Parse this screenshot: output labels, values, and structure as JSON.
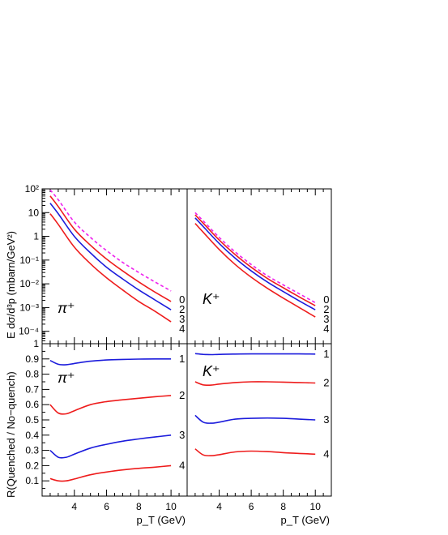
{
  "panels": {
    "top_left_label": "π⁺",
    "top_right_label": "K⁺",
    "bottom_left_label": "π⁺",
    "bottom_right_label": "K⁺"
  },
  "axes": {
    "top_ylabel": "E dσ/d³p  (mbarn/GeV²)",
    "bottom_ylabel": "R(Quenched / No−quench)",
    "xlabel": "p_T (GeV)",
    "x_ticks": [
      "4",
      "6",
      "8",
      "10"
    ],
    "top_y_ticks": [
      "10²",
      "10",
      "1",
      "10⁻¹",
      "10⁻²",
      "10⁻³",
      "10⁻⁴"
    ],
    "bottom_y_ticks": [
      "1",
      "0.9",
      "0.8",
      "0.7",
      "0.6",
      "0.5",
      "0.4",
      "0.3",
      "0.2",
      "0.1"
    ]
  },
  "colors": {
    "red": "#ee1c1c",
    "blue": "#1c1cdc",
    "magenta": "#ee22ee"
  },
  "chart_data": [
    {
      "type": "line",
      "panel": "top-left",
      "yscale": "log",
      "xlim": [
        2,
        11
      ],
      "ylim": [
        3e-05,
        100
      ],
      "x": [
        2.5,
        3,
        4,
        5,
        6,
        7,
        8,
        9,
        10
      ],
      "series": [
        {
          "name": "0",
          "style": "dashed",
          "color": "magenta",
          "values": [
            90,
            35,
            4,
            0.9,
            0.25,
            0.08,
            0.03,
            0.012,
            0.005
          ]
        },
        {
          "name": "2",
          "color": "red",
          "values": [
            50,
            18,
            2,
            0.42,
            0.11,
            0.035,
            0.012,
            0.0045,
            0.0018
          ]
        },
        {
          "name": "3",
          "color": "blue",
          "values": [
            25,
            9,
            1,
            0.2,
            0.05,
            0.016,
            0.0055,
            0.0021,
            0.0008
          ]
        },
        {
          "name": "4",
          "color": "red",
          "values": [
            9,
            3.2,
            0.35,
            0.07,
            0.018,
            0.0055,
            0.0018,
            0.0007,
            0.00025
          ]
        }
      ],
      "end_labels": [
        "0",
        "2",
        "3",
        "4"
      ]
    },
    {
      "type": "line",
      "panel": "top-right",
      "yscale": "log",
      "xlim": [
        2,
        11
      ],
      "ylim": [
        3e-05,
        100
      ],
      "x": [
        2.5,
        3,
        4,
        5,
        6,
        7,
        8,
        9,
        10
      ],
      "series": [
        {
          "name": "0",
          "style": "dashed",
          "color": "magenta",
          "values": [
            10,
            4.5,
            0.9,
            0.22,
            0.065,
            0.022,
            0.009,
            0.0038,
            0.0016
          ]
        },
        {
          "name": "2",
          "color": "red",
          "values": [
            8,
            3.6,
            0.7,
            0.17,
            0.05,
            0.017,
            0.0068,
            0.0028,
            0.0012
          ]
        },
        {
          "name": "3",
          "color": "blue",
          "values": [
            6,
            2.6,
            0.5,
            0.12,
            0.035,
            0.012,
            0.0047,
            0.0019,
            0.0008
          ]
        },
        {
          "name": "4",
          "color": "red",
          "values": [
            3.5,
            1.5,
            0.28,
            0.065,
            0.019,
            0.0065,
            0.0025,
            0.001,
            0.0004
          ]
        }
      ],
      "end_labels": [
        "0",
        "2",
        "3",
        "4"
      ]
    },
    {
      "type": "line",
      "panel": "bottom-left",
      "xlim": [
        2,
        11
      ],
      "ylim": [
        0,
        1
      ],
      "x": [
        2.5,
        3,
        3.5,
        4,
        5,
        6,
        7,
        8,
        9,
        10
      ],
      "series": [
        {
          "name": "1",
          "color": "blue",
          "values": [
            0.89,
            0.865,
            0.862,
            0.87,
            0.885,
            0.893,
            0.897,
            0.899,
            0.9,
            0.9
          ]
        },
        {
          "name": "2",
          "color": "red",
          "values": [
            0.6,
            0.545,
            0.54,
            0.56,
            0.6,
            0.62,
            0.632,
            0.642,
            0.652,
            0.66
          ]
        },
        {
          "name": "3",
          "color": "blue",
          "values": [
            0.3,
            0.255,
            0.255,
            0.275,
            0.315,
            0.34,
            0.36,
            0.375,
            0.388,
            0.4
          ]
        },
        {
          "name": "4",
          "color": "red",
          "values": [
            0.115,
            0.1,
            0.1,
            0.112,
            0.14,
            0.158,
            0.172,
            0.182,
            0.19,
            0.2
          ]
        }
      ],
      "end_labels": [
        "1",
        "2",
        "3",
        "4"
      ]
    },
    {
      "type": "line",
      "panel": "bottom-right",
      "xlim": [
        2,
        11
      ],
      "ylim": [
        0,
        1
      ],
      "x": [
        2.5,
        3,
        3.5,
        4,
        5,
        6,
        7,
        8,
        9,
        10
      ],
      "series": [
        {
          "name": "1",
          "color": "blue",
          "values": [
            0.935,
            0.93,
            0.928,
            0.93,
            0.932,
            0.933,
            0.933,
            0.933,
            0.933,
            0.932
          ]
        },
        {
          "name": "2",
          "color": "red",
          "values": [
            0.75,
            0.73,
            0.728,
            0.735,
            0.745,
            0.75,
            0.75,
            0.748,
            0.745,
            0.742
          ]
        },
        {
          "name": "3",
          "color": "blue",
          "values": [
            0.53,
            0.485,
            0.478,
            0.485,
            0.505,
            0.51,
            0.512,
            0.51,
            0.505,
            0.5
          ]
        },
        {
          "name": "4",
          "color": "red",
          "values": [
            0.31,
            0.27,
            0.265,
            0.272,
            0.29,
            0.295,
            0.292,
            0.285,
            0.28,
            0.275
          ]
        }
      ],
      "end_labels": [
        "1",
        "2",
        "3",
        "4"
      ]
    }
  ]
}
